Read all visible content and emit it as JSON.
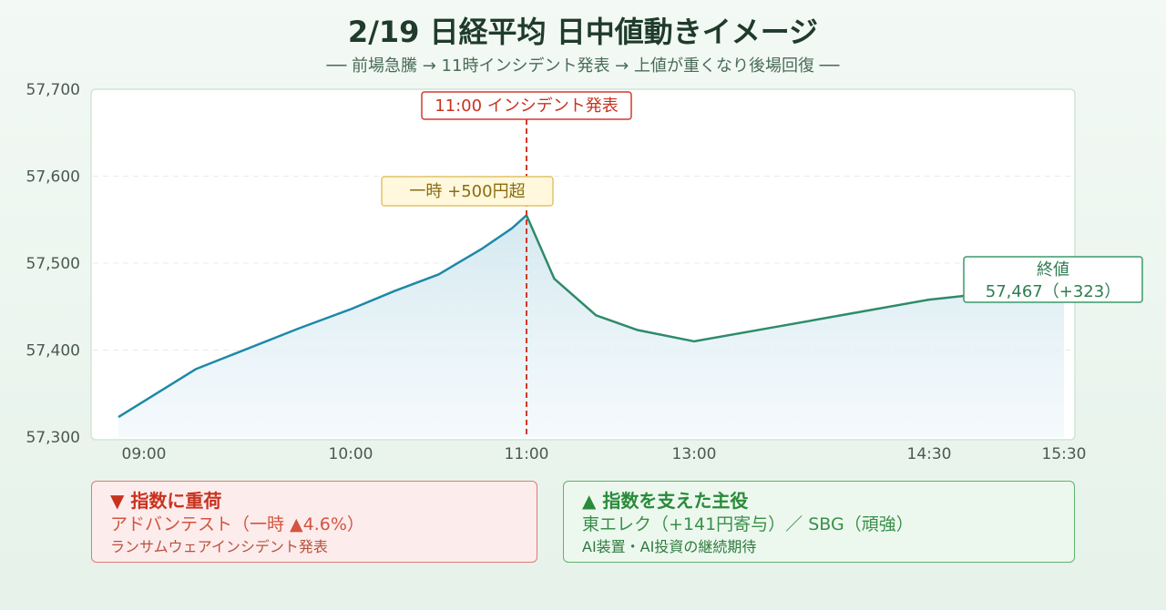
{
  "title": "2/19 日経平均 日中値動きイメージ",
  "subtitle": "── 前場急騰 → 11時インシデント発表 → 上値が重くなり後場回復 ──",
  "colors": {
    "line_morning": "#1e88a8",
    "line_afternoon": "#2e8b6a",
    "event_line": "#d23a2a",
    "area_fill": "#d6ebf2"
  },
  "chart_data": {
    "type": "line",
    "title": "2/19 日経平均 日中値動きイメージ",
    "xlabel": "",
    "ylabel": "",
    "ylim": [
      57300,
      57700
    ],
    "yticks": [
      57300,
      57400,
      57500,
      57600,
      57700
    ],
    "ytick_labels": [
      "57,300",
      "57,400",
      "57,500",
      "57,600",
      "57,700"
    ],
    "xlim": [
      "08:45",
      "15:30"
    ],
    "xticks": [
      "09:00",
      "10:00",
      "11:00",
      "13:00",
      "14:30",
      "15:30"
    ],
    "grid": true,
    "series": [
      {
        "points": [
          [
            "08:45",
            57323
          ],
          [
            "09:15",
            57378
          ],
          [
            "09:45",
            57425
          ],
          [
            "10:00",
            57447
          ],
          [
            "10:15",
            57468
          ],
          [
            "10:30",
            57487
          ],
          [
            "10:45",
            57517
          ],
          [
            "10:55",
            57540
          ],
          [
            "11:00",
            57555
          ],
          [
            "11:10",
            57482
          ],
          [
            "11:25",
            57440
          ],
          [
            "11:40",
            57423
          ],
          [
            "13:00",
            57410
          ],
          [
            "13:30",
            57426
          ],
          [
            "14:00",
            57442
          ],
          [
            "14:30",
            57458
          ],
          [
            "15:00",
            57467
          ]
        ]
      }
    ],
    "annotations": {
      "event": {
        "x": "11:00",
        "label": "11:00 インシデント発表"
      },
      "peak": {
        "x": "11:00",
        "y": 57555,
        "label": "一時 +500円超"
      },
      "close": {
        "title": "終値",
        "value": "57,467（+323）"
      }
    }
  },
  "cards": {
    "negative": {
      "title": "▼ 指数に重荷",
      "line1": "アドバンテスト（一時 ▲4.6%）",
      "line2": "ランサムウェアインシデント発表"
    },
    "positive": {
      "title": "▲ 指数を支えた主役",
      "line1": "東エレク（+141円寄与）／ SBG（頑強）",
      "line2": "AI装置・AI投資の継続期待"
    }
  }
}
